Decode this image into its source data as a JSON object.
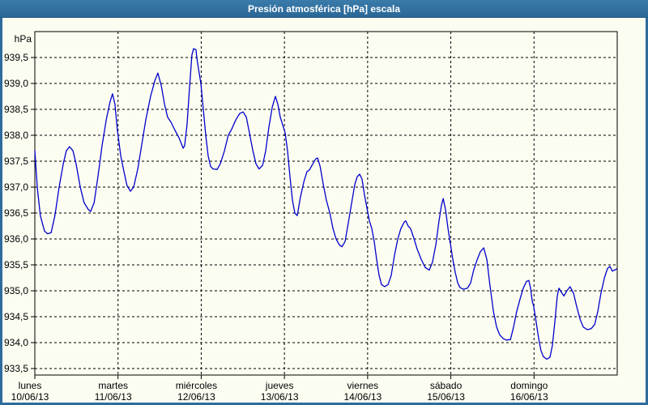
{
  "window": {
    "title": "Presión atmosférica [hPa] escala"
  },
  "colors": {
    "window_border": "#2d6c9d",
    "titlebar": "#2e6d9c",
    "title_text": "#ffffff",
    "background": "#fcfdf1",
    "grid": "#000000",
    "series_line": "#0000cd"
  },
  "chart_data": {
    "type": "line",
    "title": "Presión atmosférica [hPa] escala",
    "ylabel": "hPa",
    "xlabel": "",
    "x_unit": "hours since lunes 10/06/13 00:00",
    "xlim": [
      0,
      168
    ],
    "ylim": [
      933.4,
      940.0
    ],
    "grid": "dashed",
    "legend_position": "none",
    "y_ticks": [
      {
        "value": 939.5,
        "label": "939,5"
      },
      {
        "value": 939.0,
        "label": "939,0"
      },
      {
        "value": 938.5,
        "label": "938,5"
      },
      {
        "value": 938.0,
        "label": "938,0"
      },
      {
        "value": 937.5,
        "label": "937,5"
      },
      {
        "value": 937.0,
        "label": "937,0"
      },
      {
        "value": 936.5,
        "label": "936,5"
      },
      {
        "value": 936.0,
        "label": "936,0"
      },
      {
        "value": 935.5,
        "label": "935,5"
      },
      {
        "value": 935.0,
        "label": "935,0"
      },
      {
        "value": 934.5,
        "label": "934,5"
      },
      {
        "value": 934.0,
        "label": "934,0"
      },
      {
        "value": 933.5,
        "label": "933,5"
      }
    ],
    "x_days": [
      {
        "name": "lunes",
        "date": "10/06/13"
      },
      {
        "name": "martes",
        "date": "11/06/13"
      },
      {
        "name": "miércoles",
        "date": "12/06/13"
      },
      {
        "name": "jueves",
        "date": "13/06/13"
      },
      {
        "name": "viernes",
        "date": "14/06/13"
      },
      {
        "name": "sábado",
        "date": "15/06/13"
      },
      {
        "name": "domingo",
        "date": "16/06/13"
      }
    ],
    "series": [
      {
        "name": "Presión atmosférica",
        "color": "#0000cd",
        "points": [
          [
            0,
            937.7
          ],
          [
            0.7,
            937.0
          ],
          [
            1.6,
            936.45
          ],
          [
            2.8,
            936.15
          ],
          [
            3.7,
            936.1
          ],
          [
            4.7,
            936.12
          ],
          [
            5.8,
            936.45
          ],
          [
            7.0,
            937.0
          ],
          [
            8.2,
            937.45
          ],
          [
            9.1,
            937.7
          ],
          [
            10.0,
            937.78
          ],
          [
            11.0,
            937.7
          ],
          [
            11.9,
            937.45
          ],
          [
            13.1,
            937.0
          ],
          [
            14.2,
            936.7
          ],
          [
            15.4,
            936.57
          ],
          [
            16.1,
            936.53
          ],
          [
            17.1,
            936.7
          ],
          [
            18.2,
            937.2
          ],
          [
            19.4,
            937.8
          ],
          [
            20.6,
            938.3
          ],
          [
            21.7,
            938.65
          ],
          [
            22.4,
            938.8
          ],
          [
            23.1,
            938.6
          ],
          [
            23.8,
            938.1
          ],
          [
            24.8,
            937.6
          ],
          [
            25.7,
            937.3
          ],
          [
            26.6,
            937.03
          ],
          [
            27.6,
            936.92
          ],
          [
            28.5,
            937.0
          ],
          [
            29.7,
            937.35
          ],
          [
            30.8,
            937.8
          ],
          [
            32.0,
            938.3
          ],
          [
            33.4,
            938.75
          ],
          [
            34.6,
            939.05
          ],
          [
            35.5,
            939.2
          ],
          [
            36.5,
            938.95
          ],
          [
            37.4,
            938.6
          ],
          [
            38.3,
            938.35
          ],
          [
            39.3,
            938.25
          ],
          [
            40.4,
            938.1
          ],
          [
            41.6,
            937.95
          ],
          [
            42.8,
            937.75
          ],
          [
            43.2,
            937.8
          ],
          [
            43.9,
            938.2
          ],
          [
            44.6,
            938.9
          ],
          [
            45.3,
            939.55
          ],
          [
            45.8,
            939.67
          ],
          [
            46.5,
            939.65
          ],
          [
            46.7,
            939.5
          ],
          [
            47.4,
            939.2
          ],
          [
            47.9,
            939.0
          ],
          [
            48.6,
            938.5
          ],
          [
            49.3,
            938.0
          ],
          [
            50.0,
            937.6
          ],
          [
            50.7,
            937.4
          ],
          [
            51.4,
            937.35
          ],
          [
            52.6,
            937.34
          ],
          [
            53.5,
            937.45
          ],
          [
            54.7,
            937.7
          ],
          [
            55.8,
            938.0
          ],
          [
            56.8,
            938.12
          ],
          [
            58.0,
            938.3
          ],
          [
            59.1,
            938.42
          ],
          [
            60.1,
            938.45
          ],
          [
            61.0,
            938.35
          ],
          [
            61.9,
            938.05
          ],
          [
            62.9,
            937.7
          ],
          [
            63.8,
            937.45
          ],
          [
            64.7,
            937.35
          ],
          [
            65.7,
            937.42
          ],
          [
            66.6,
            937.7
          ],
          [
            67.5,
            938.15
          ],
          [
            68.5,
            938.55
          ],
          [
            69.4,
            938.75
          ],
          [
            70.1,
            938.6
          ],
          [
            70.8,
            938.35
          ],
          [
            71.5,
            938.2
          ],
          [
            72.2,
            938.05
          ],
          [
            72.9,
            937.7
          ],
          [
            73.6,
            937.2
          ],
          [
            74.3,
            936.75
          ],
          [
            75.0,
            936.5
          ],
          [
            75.7,
            936.45
          ],
          [
            76.6,
            936.8
          ],
          [
            77.6,
            937.1
          ],
          [
            78.5,
            937.3
          ],
          [
            79.2,
            937.33
          ],
          [
            80.2,
            937.45
          ],
          [
            81.1,
            937.55
          ],
          [
            81.6,
            937.56
          ],
          [
            82.3,
            937.4
          ],
          [
            83.2,
            937.05
          ],
          [
            84.1,
            936.75
          ],
          [
            85.1,
            936.5
          ],
          [
            86.0,
            936.2
          ],
          [
            86.9,
            936.0
          ],
          [
            87.9,
            935.88
          ],
          [
            88.6,
            935.85
          ],
          [
            89.5,
            935.95
          ],
          [
            90.4,
            936.3
          ],
          [
            91.4,
            936.7
          ],
          [
            92.3,
            937.05
          ],
          [
            93.0,
            937.2
          ],
          [
            93.7,
            937.25
          ],
          [
            94.4,
            937.15
          ],
          [
            95.1,
            936.85
          ],
          [
            95.8,
            936.6
          ],
          [
            96.5,
            936.35
          ],
          [
            97.2,
            936.2
          ],
          [
            97.9,
            935.95
          ],
          [
            98.6,
            935.6
          ],
          [
            99.3,
            935.3
          ],
          [
            100.0,
            935.12
          ],
          [
            100.9,
            935.08
          ],
          [
            101.9,
            935.12
          ],
          [
            102.8,
            935.3
          ],
          [
            103.8,
            935.7
          ],
          [
            104.7,
            936.0
          ],
          [
            105.6,
            936.2
          ],
          [
            106.6,
            936.33
          ],
          [
            107.0,
            936.35
          ],
          [
            107.7,
            936.25
          ],
          [
            108.4,
            936.2
          ],
          [
            109.4,
            936.0
          ],
          [
            110.3,
            935.8
          ],
          [
            111.5,
            935.6
          ],
          [
            112.6,
            935.45
          ],
          [
            113.8,
            935.4
          ],
          [
            114.7,
            935.55
          ],
          [
            115.7,
            935.9
          ],
          [
            116.6,
            936.35
          ],
          [
            117.3,
            936.65
          ],
          [
            117.8,
            936.78
          ],
          [
            118.5,
            936.55
          ],
          [
            119.2,
            936.2
          ],
          [
            119.9,
            935.9
          ],
          [
            120.6,
            935.6
          ],
          [
            121.3,
            935.35
          ],
          [
            122.0,
            935.15
          ],
          [
            122.7,
            935.06
          ],
          [
            123.6,
            935.03
          ],
          [
            124.8,
            935.05
          ],
          [
            125.7,
            935.15
          ],
          [
            126.6,
            935.4
          ],
          [
            127.6,
            935.6
          ],
          [
            128.5,
            935.75
          ],
          [
            129.5,
            935.83
          ],
          [
            130.4,
            935.6
          ],
          [
            131.3,
            935.1
          ],
          [
            132.3,
            934.6
          ],
          [
            133.2,
            934.3
          ],
          [
            134.1,
            934.15
          ],
          [
            135.1,
            934.08
          ],
          [
            136.0,
            934.05
          ],
          [
            137.2,
            934.06
          ],
          [
            138.1,
            934.3
          ],
          [
            139.0,
            934.6
          ],
          [
            140.0,
            934.85
          ],
          [
            140.9,
            935.05
          ],
          [
            141.8,
            935.18
          ],
          [
            142.5,
            935.2
          ],
          [
            143.0,
            935.05
          ],
          [
            143.5,
            934.8
          ],
          [
            143.9,
            934.7
          ],
          [
            144.6,
            934.4
          ],
          [
            145.3,
            934.1
          ],
          [
            146.0,
            933.85
          ],
          [
            146.7,
            933.73
          ],
          [
            147.7,
            933.68
          ],
          [
            148.6,
            933.72
          ],
          [
            149.3,
            933.95
          ],
          [
            150.0,
            934.4
          ],
          [
            150.7,
            934.9
          ],
          [
            151.2,
            935.05
          ],
          [
            151.9,
            934.97
          ],
          [
            152.6,
            934.9
          ],
          [
            153.5,
            935.0
          ],
          [
            154.4,
            935.08
          ],
          [
            155.4,
            934.95
          ],
          [
            156.3,
            934.7
          ],
          [
            157.3,
            934.45
          ],
          [
            158.2,
            934.3
          ],
          [
            159.4,
            934.25
          ],
          [
            160.5,
            934.27
          ],
          [
            161.5,
            934.35
          ],
          [
            162.4,
            934.6
          ],
          [
            163.3,
            934.95
          ],
          [
            164.3,
            935.25
          ],
          [
            165.2,
            935.43
          ],
          [
            165.9,
            935.47
          ],
          [
            166.6,
            935.38
          ],
          [
            167.3,
            935.4
          ],
          [
            167.8,
            935.42
          ]
        ]
      }
    ]
  }
}
